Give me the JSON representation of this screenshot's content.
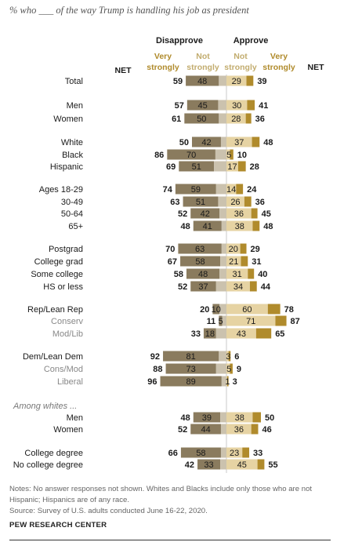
{
  "subtitle": "% who ___ of the way Trump is handling his job as president",
  "notes": "Notes: No answer responses not shown. Whites and Blacks include only those who are not",
  "notes2": "Hispanic; Hispanics are of any race.",
  "source": "Source: Survey of U.S. adults conducted June 16-22, 2020.",
  "org": "PEW RESEARCH CENTER",
  "colors": {
    "disapprove_very": "#8a7b5e",
    "disapprove_not": "#cbc2ae",
    "approve_not": "#e6d3a3",
    "approve_very": "#b08b2c",
    "label_very": "#b08b2c",
    "label_not": "#c2ac6e"
  },
  "chart_data": {
    "type": "bar",
    "orientation": "horizontal-diverging",
    "headers": {
      "disapprove": "Disapprove",
      "approve": "Approve",
      "very_strongly": [
        "Very",
        "strongly"
      ],
      "not_strongly": [
        "Not",
        "strongly"
      ],
      "net": "NET"
    },
    "series": [
      {
        "name": "Disapprove - Very strongly",
        "key": "dvs"
      },
      {
        "name": "Disapprove - Not strongly",
        "key": "dns"
      },
      {
        "name": "Approve - Not strongly",
        "key": "ans"
      },
      {
        "name": "Approve - Very strongly",
        "key": "avs"
      }
    ],
    "rows": [
      {
        "label": "Total",
        "sub": false,
        "dis_net": 59,
        "dis_very": 48,
        "app_not": 29,
        "app_net": 39
      },
      {
        "label": "Men",
        "sub": false,
        "dis_net": 57,
        "dis_very": 45,
        "app_not": 30,
        "app_net": 41
      },
      {
        "label": "Women",
        "sub": false,
        "dis_net": 61,
        "dis_very": 50,
        "app_not": 28,
        "app_net": 36
      },
      {
        "label": "White",
        "sub": false,
        "dis_net": 50,
        "dis_very": 42,
        "app_not": 37,
        "app_net": 48
      },
      {
        "label": "Black",
        "sub": false,
        "dis_net": 86,
        "dis_very": 70,
        "app_not": 5,
        "app_net": 10
      },
      {
        "label": "Hispanic",
        "sub": false,
        "dis_net": 69,
        "dis_very": 51,
        "app_not": 17,
        "app_net": 28
      },
      {
        "label": "Ages 18-29",
        "sub": false,
        "dis_net": 74,
        "dis_very": 59,
        "app_not": 14,
        "app_net": 24
      },
      {
        "label": "30-49",
        "sub": false,
        "dis_net": 63,
        "dis_very": 51,
        "app_not": 26,
        "app_net": 36
      },
      {
        "label": "50-64",
        "sub": false,
        "dis_net": 52,
        "dis_very": 42,
        "app_not": 36,
        "app_net": 45
      },
      {
        "label": "65+",
        "sub": false,
        "dis_net": 48,
        "dis_very": 41,
        "app_not": 38,
        "app_net": 48
      },
      {
        "label": "Postgrad",
        "sub": false,
        "dis_net": 70,
        "dis_very": 63,
        "app_not": 20,
        "app_net": 29
      },
      {
        "label": "College grad",
        "sub": false,
        "dis_net": 67,
        "dis_very": 58,
        "app_not": 21,
        "app_net": 31
      },
      {
        "label": "Some college",
        "sub": false,
        "dis_net": 58,
        "dis_very": 48,
        "app_not": 31,
        "app_net": 40
      },
      {
        "label": "HS or less",
        "sub": false,
        "dis_net": 52,
        "dis_very": 37,
        "app_not": 34,
        "app_net": 44
      },
      {
        "label": "Rep/Lean Rep",
        "sub": false,
        "dis_net": 20,
        "dis_very": 10,
        "app_not": 60,
        "app_net": 78
      },
      {
        "label": "Conserv",
        "sub": true,
        "dis_net": 11,
        "dis_very": 5,
        "app_not": 71,
        "app_net": 87
      },
      {
        "label": "Mod/Lib",
        "sub": true,
        "dis_net": 33,
        "dis_very": 18,
        "app_not": 43,
        "app_net": 65
      },
      {
        "label": "Dem/Lean Dem",
        "sub": false,
        "dis_net": 92,
        "dis_very": 81,
        "app_not": 3,
        "app_net": 6
      },
      {
        "label": "Cons/Mod",
        "sub": true,
        "dis_net": 88,
        "dis_very": 73,
        "app_not": 5,
        "app_net": 9
      },
      {
        "label": "Liberal",
        "sub": true,
        "dis_net": 96,
        "dis_very": 89,
        "app_not": 1,
        "app_net": 3
      },
      {
        "label": "Men",
        "sub": false,
        "dis_net": 48,
        "dis_very": 39,
        "app_not": 38,
        "app_net": 50
      },
      {
        "label": "Women",
        "sub": false,
        "dis_net": 52,
        "dis_very": 44,
        "app_not": 36,
        "app_net": 46
      },
      {
        "label": "College degree",
        "sub": false,
        "dis_net": 66,
        "dis_very": 58,
        "app_not": 23,
        "app_net": 33
      },
      {
        "label": "No college degree",
        "sub": false,
        "dis_net": 42,
        "dis_very": 33,
        "app_not": 45,
        "app_net": 55
      }
    ],
    "section_label": "Among whites ...",
    "section_label_before_row": 20
  }
}
